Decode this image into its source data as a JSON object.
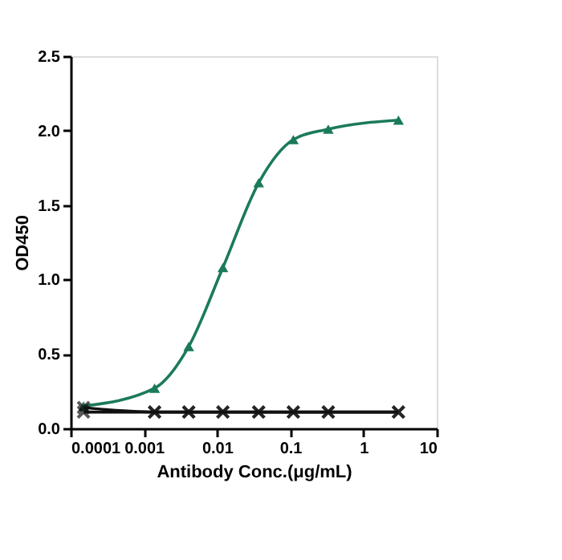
{
  "chart_data": {
    "type": "line",
    "xlabel": "Antibody Conc.(μg/mL)",
    "ylabel": "OD450",
    "log": "x",
    "x": [
      0.00015,
      0.0014,
      0.0041,
      0.012,
      0.037,
      0.11,
      0.33,
      3
    ],
    "series": [
      {
        "color": "#1b7a5c",
        "marker": "triangle",
        "values": [
          0.15,
          0.27,
          0.55,
          1.08,
          1.65,
          1.94,
          2.01,
          2.07
        ]
      },
      {
        "color": "#111111",
        "marker": "cross",
        "values": [
          0.14,
          0.11,
          0.11,
          0.11,
          0.11,
          0.11,
          0.11,
          0.11
        ]
      },
      {
        "color": "#111111",
        "marker": "cross",
        "values": [
          0.11,
          0.11,
          0.11,
          0.11,
          0.11,
          0.11,
          0.11,
          0.11
        ]
      }
    ],
    "xlim": [
      0.0001,
      10
    ],
    "xticks": [
      0.0001,
      0.001,
      0.01,
      0.1,
      1,
      10
    ],
    "ylim": [
      0,
      2.5
    ],
    "yticks": [
      {
        "value": 0,
        "label": "0.0"
      },
      {
        "value": 0.5,
        "label": "0.5"
      },
      {
        "value": 1,
        "label": "1.0"
      },
      {
        "value": 1.5,
        "label": "1.5"
      },
      {
        "value": 2,
        "label": "2.0"
      },
      {
        "value": 2.5,
        "label": "2.5"
      }
    ],
    "grid": false
  }
}
